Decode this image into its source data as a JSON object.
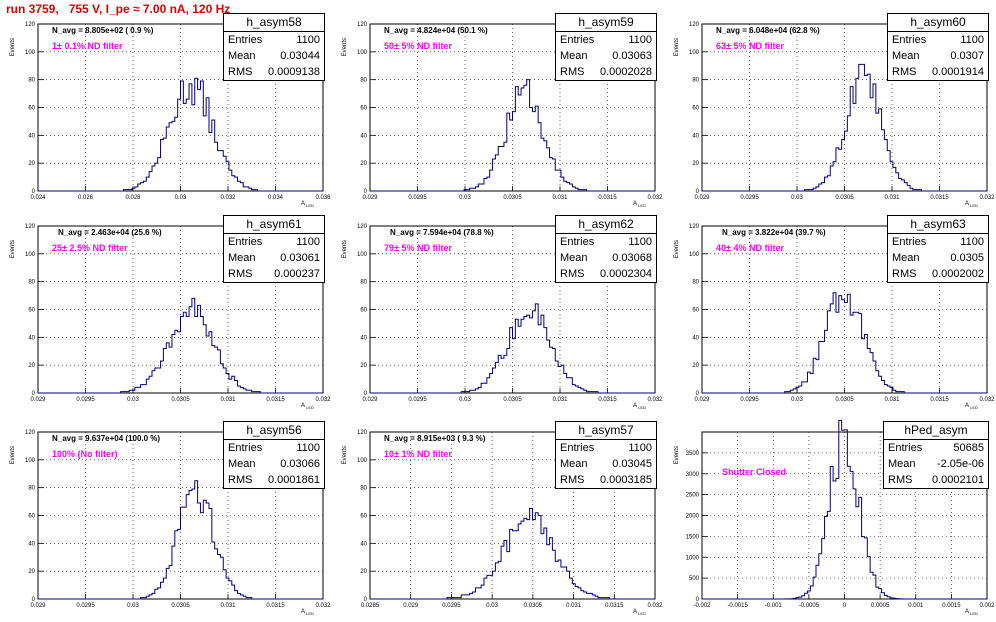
{
  "run_title": "run 3759,   755 V, I_pe ≈ 7.00 nA, 120 Hz",
  "stat_labels": {
    "entries": "Entries",
    "mean": "Mean",
    "rms": "RMS"
  },
  "chart_data": [
    {
      "type": "histogram",
      "name": "h_asym58",
      "navg": "N_avg = 8.805e+02 ( 0.9 %)",
      "filter": "1± 0.1% ND filter",
      "entries": "1100",
      "mean": "0.03044",
      "rms": "0.0009138",
      "xlim": [
        0.024,
        0.036
      ],
      "xticks": [
        0.024,
        0.026,
        0.028,
        0.03,
        0.032,
        0.034,
        0.036
      ],
      "xtick_labels": [
        "0.024",
        "0.026",
        "0.028",
        "0.03",
        "0.032",
        "0.034",
        "0.036"
      ],
      "ylim": [
        0,
        120
      ],
      "yticks": [
        0,
        20,
        40,
        60,
        80,
        100,
        120
      ],
      "ytick_labels": [
        "0",
        "20",
        "40",
        "60",
        "80",
        "100",
        "120"
      ],
      "xlabel": "A_LED",
      "ylabel": "Events",
      "hist_mean": 0.03044,
      "hist_rms": 0.0009138,
      "peak": 76
    },
    {
      "type": "histogram",
      "name": "h_asym59",
      "navg": "N_avg = 4.824e+04 (50.1 %)",
      "filter": "50± 5% ND filter",
      "entries": "1100",
      "mean": "0.03063",
      "rms": "0.0002028",
      "xlim": [
        0.029,
        0.032
      ],
      "xticks": [
        0.029,
        0.0295,
        0.03,
        0.0305,
        0.031,
        0.0315,
        0.032
      ],
      "xtick_labels": [
        "0.029",
        "0.0295",
        "0.03",
        "0.0305",
        "0.031",
        "0.0315",
        "0.032"
      ],
      "ylim": [
        0,
        120
      ],
      "yticks": [
        0,
        20,
        40,
        60,
        80,
        100,
        120
      ],
      "ytick_labels": [
        "0",
        "20",
        "40",
        "60",
        "80",
        "100",
        "120"
      ],
      "xlabel": "A_LED",
      "ylabel": "Events",
      "hist_mean": 0.03063,
      "hist_rms": 0.0002028,
      "peak": 70
    },
    {
      "type": "histogram",
      "name": "h_asym60",
      "navg": "N_avg = 6.048e+04 (62.8 %)",
      "filter": "63± 5% ND filter",
      "entries": "1100",
      "mean": "0.0307",
      "rms": "0.0001914",
      "xlim": [
        0.029,
        0.032
      ],
      "xticks": [
        0.029,
        0.0295,
        0.03,
        0.0305,
        0.031,
        0.0315,
        0.032
      ],
      "xtick_labels": [
        "0.029",
        "0.0295",
        "0.03",
        "0.0305",
        "0.031",
        "0.0315",
        "0.032"
      ],
      "ylim": [
        0,
        120
      ],
      "yticks": [
        0,
        20,
        40,
        60,
        80,
        100,
        120
      ],
      "ytick_labels": [
        "0",
        "20",
        "40",
        "60",
        "80",
        "100",
        "120"
      ],
      "xlabel": "A_LED",
      "ylabel": "Events",
      "hist_mean": 0.0307,
      "hist_rms": 0.0001914,
      "peak": 80
    },
    {
      "type": "histogram",
      "name": "h_asym61",
      "navg": "N_avg = 2.463e+04 (25.6 %)",
      "filter": "25± 2.5% ND filter",
      "entries": "1100",
      "mean": "0.03061",
      "rms": "0.000237",
      "xlim": [
        0.029,
        0.032
      ],
      "xticks": [
        0.029,
        0.0295,
        0.03,
        0.0305,
        0.031,
        0.0315,
        0.032
      ],
      "xtick_labels": [
        "0.029",
        "0.0295",
        "0.03",
        "0.0305",
        "0.031",
        "0.0315",
        "0.032"
      ],
      "ylim": [
        0,
        120
      ],
      "yticks": [
        0,
        20,
        40,
        60,
        80,
        100,
        120
      ],
      "ytick_labels": [
        "0",
        "20",
        "40",
        "60",
        "80",
        "100",
        "120"
      ],
      "xlabel": "A_LED",
      "ylabel": "Events",
      "hist_mean": 0.03061,
      "hist_rms": 0.000237,
      "peak": 59
    },
    {
      "type": "histogram",
      "name": "h_asym62",
      "navg": "N_avg = 7.594e+04 (78.8 %)",
      "filter": "79± 5% ND filter",
      "entries": "1100",
      "mean": "0.03068",
      "rms": "0.0002304",
      "xlim": [
        0.029,
        0.032
      ],
      "xticks": [
        0.029,
        0.0295,
        0.03,
        0.0305,
        0.031,
        0.0315,
        0.032
      ],
      "xtick_labels": [
        "0.029",
        "0.0295",
        "0.03",
        "0.0305",
        "0.031",
        "0.0315",
        "0.032"
      ],
      "ylim": [
        0,
        120
      ],
      "yticks": [
        0,
        20,
        40,
        60,
        80,
        100,
        120
      ],
      "ytick_labels": [
        "0",
        "20",
        "40",
        "60",
        "80",
        "100",
        "120"
      ],
      "xlabel": "A_LED",
      "ylabel": "Events",
      "hist_mean": 0.03068,
      "hist_rms": 0.0002304,
      "peak": 58
    },
    {
      "type": "histogram",
      "name": "h_asym63",
      "navg": "N_avg = 3.822e+04 (39.7 %)",
      "filter": "40± 4% ND filter",
      "entries": "1100",
      "mean": "0.0305",
      "rms": "0.0002002",
      "xlim": [
        0.029,
        0.032
      ],
      "xticks": [
        0.029,
        0.0295,
        0.03,
        0.0305,
        0.031,
        0.0315,
        0.032
      ],
      "xtick_labels": [
        "0.029",
        "0.0295",
        "0.03",
        "0.0305",
        "0.031",
        "0.0315",
        "0.032"
      ],
      "ylim": [
        0,
        120
      ],
      "yticks": [
        0,
        20,
        40,
        60,
        80,
        100,
        120
      ],
      "ytick_labels": [
        "0",
        "20",
        "40",
        "60",
        "80",
        "100",
        "120"
      ],
      "xlabel": "A_LED",
      "ylabel": "Events",
      "hist_mean": 0.0305,
      "hist_rms": 0.0002002,
      "peak": 73
    },
    {
      "type": "histogram",
      "name": "h_asym56",
      "navg": "N_avg = 9.637e+04 (100.0 %)",
      "filter": "100% (No filter)",
      "entries": "1100",
      "mean": "0.03066",
      "rms": "0.0001861",
      "xlim": [
        0.029,
        0.032
      ],
      "xticks": [
        0.029,
        0.0295,
        0.03,
        0.0305,
        0.031,
        0.0315,
        0.032
      ],
      "xtick_labels": [
        "0.029",
        "0.0295",
        "0.03",
        "0.0305",
        "0.031",
        "0.0315",
        "0.032"
      ],
      "ylim": [
        0,
        120
      ],
      "yticks": [
        0,
        20,
        40,
        60,
        80,
        100,
        120
      ],
      "ytick_labels": [
        "0",
        "20",
        "40",
        "60",
        "80",
        "100",
        "120"
      ],
      "xlabel": "A_LED",
      "ylabel": "Events",
      "hist_mean": 0.03066,
      "hist_rms": 0.0001861,
      "peak": 80
    },
    {
      "type": "histogram",
      "name": "h_asym57",
      "navg": "N_avg = 8.915e+03 ( 9.3 %)",
      "filter": "10± 1% ND filter",
      "entries": "1100",
      "mean": "0.03045",
      "rms": "0.0003185",
      "xlim": [
        0.0285,
        0.032
      ],
      "xticks": [
        0.0285,
        0.029,
        0.0295,
        0.03,
        0.0305,
        0.031,
        0.0315,
        0.032
      ],
      "xtick_labels": [
        "0.0285",
        "0.029",
        "0.0295",
        "0.03",
        "0.0305",
        "0.031",
        "0.0315",
        "0.032"
      ],
      "ylim": [
        0,
        120
      ],
      "yticks": [
        0,
        20,
        40,
        60,
        80,
        100,
        120
      ],
      "ytick_labels": [
        "0",
        "20",
        "40",
        "60",
        "80",
        "100",
        "120"
      ],
      "xlabel": "A_LED",
      "ylabel": "Events",
      "hist_mean": 0.03045,
      "hist_rms": 0.0003185,
      "peak": 56
    },
    {
      "type": "histogram",
      "name": "hPed_asym",
      "navg": "",
      "filter": "Shutter Closed",
      "entries": "50685",
      "mean": "-2.05e-06",
      "rms": "0.0002101",
      "xlim": [
        -0.002,
        0.002
      ],
      "xticks": [
        -0.002,
        -0.0015,
        -0.001,
        -0.0005,
        0,
        0.0005,
        0.001,
        0.0015,
        0.002
      ],
      "xtick_labels": [
        "-0.002",
        "-0.0015",
        "-0.001",
        "-0.0005",
        "0",
        "0.0005",
        "0.001",
        "0.0015",
        "0.002"
      ],
      "ylim": [
        0,
        4000
      ],
      "yticks": [
        0,
        500,
        1000,
        1500,
        2000,
        2500,
        3000,
        3500
      ],
      "ytick_labels": [
        "0",
        "500",
        "1000",
        "1500",
        "2000",
        "2500",
        "3000",
        "3500"
      ],
      "xlabel": "A_LED",
      "ylabel": "Events",
      "hist_mean": -2.05e-06,
      "hist_rms": 0.0002101,
      "peak": 3850
    }
  ]
}
